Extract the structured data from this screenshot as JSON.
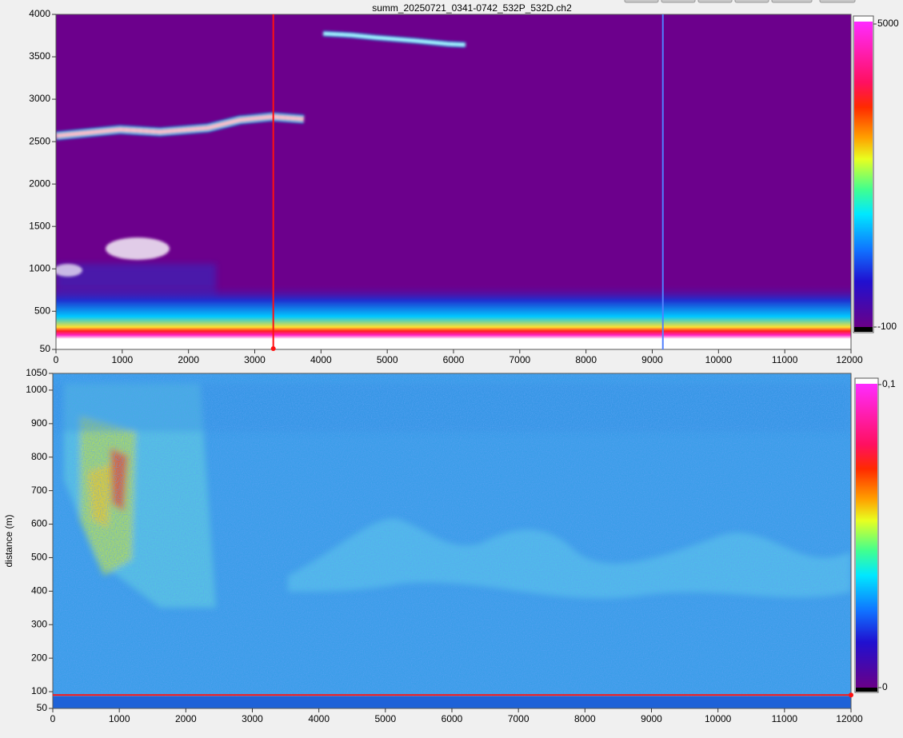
{
  "title": "summ_20250721_0341-0742_532P_532D.ch2",
  "plots": [
    {
      "xlim": [
        0,
        12000
      ],
      "xticks": [
        0,
        1000,
        2000,
        3000,
        4000,
        5000,
        6000,
        7000,
        8000,
        9000,
        10000,
        11000,
        12000
      ],
      "ylim": [
        50,
        4000
      ],
      "yticks": [
        50,
        500,
        1000,
        1500,
        2000,
        2500,
        3000,
        3500,
        4000
      ],
      "colorbar": {
        "max_label": "5000",
        "min_label": "-100"
      },
      "cursors": {
        "x_red": 3280,
        "x_blue": 9160
      }
    },
    {
      "xlim": [
        0,
        12000
      ],
      "xticks": [
        0,
        1000,
        2000,
        3000,
        4000,
        5000,
        6000,
        7000,
        8000,
        9000,
        10000,
        11000,
        12000
      ],
      "ylim": [
        50,
        1050
      ],
      "yticks": [
        50,
        100,
        200,
        300,
        400,
        500,
        600,
        700,
        800,
        900,
        1000,
        1050
      ],
      "ylabel": "distance (m)",
      "colorbar": {
        "max_label": "0,1",
        "min_label": "0"
      },
      "cursors": {
        "y_red": 90
      }
    }
  ]
}
